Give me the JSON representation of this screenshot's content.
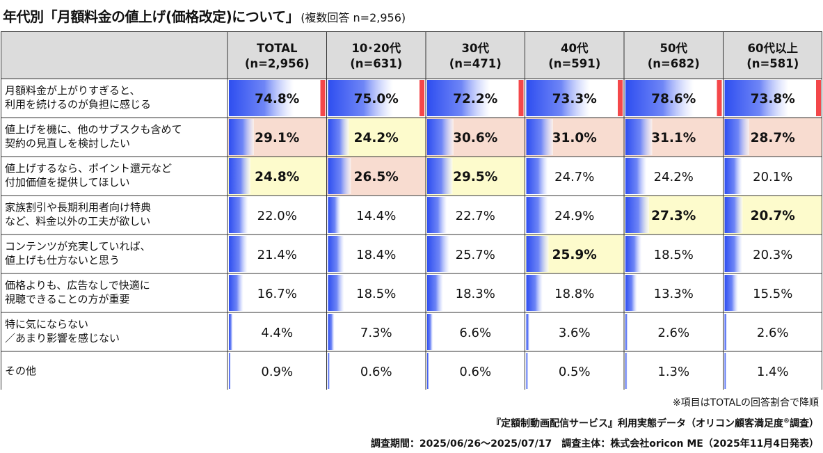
{
  "title": {
    "main": "年代別「月額料金の値上げ(価格改定)について」",
    "sub": "(複数回答 n=2,956)"
  },
  "chart_data": {
    "type": "table",
    "title": "年代別「月額料金の値上げ(価格改定)について」(複数回答 n=2,956)",
    "columns": [
      {
        "label": "TOTAL",
        "n": "(n=2,956)"
      },
      {
        "label": "10･20代",
        "n": "(n=631)"
      },
      {
        "label": "30代",
        "n": "(n=471)"
      },
      {
        "label": "40代",
        "n": "(n=591)"
      },
      {
        "label": "50代",
        "n": "(n=682)"
      },
      {
        "label": "60代以上",
        "n": "(n=581)"
      }
    ],
    "rows": [
      {
        "label": [
          "月額料金が上がりすぎると、",
          "利用を続けるのが負担に感じる"
        ],
        "values": [
          74.8,
          75.0,
          72.2,
          73.3,
          78.6,
          73.8
        ],
        "display": [
          "74.8%",
          "75.0%",
          "72.2%",
          "73.3%",
          "78.6%",
          "73.8%"
        ],
        "rank": [
          1,
          1,
          1,
          1,
          1,
          1
        ]
      },
      {
        "label": [
          "値上げを機に、他のサブスクも含めて",
          "契約の見直しを検討したい"
        ],
        "values": [
          29.1,
          24.2,
          30.6,
          31.0,
          31.1,
          28.7
        ],
        "display": [
          "29.1%",
          "24.2%",
          "30.6%",
          "31.0%",
          "31.1%",
          "28.7%"
        ],
        "rank": [
          2,
          3,
          2,
          2,
          2,
          2
        ]
      },
      {
        "label": [
          "値上げするなら、ポイント還元など",
          "付加価値を提供してほしい"
        ],
        "values": [
          24.8,
          26.5,
          29.5,
          24.7,
          24.2,
          20.1
        ],
        "display": [
          "24.8%",
          "26.5%",
          "29.5%",
          "24.7%",
          "24.2%",
          "20.1%"
        ],
        "rank": [
          3,
          2,
          3,
          0,
          0,
          0
        ]
      },
      {
        "label": [
          "家族割引や長期利用者向け特典",
          "など、料金以外の工夫が欲しい"
        ],
        "values": [
          22.0,
          14.4,
          22.7,
          24.9,
          27.3,
          20.7
        ],
        "display": [
          "22.0%",
          "14.4%",
          "22.7%",
          "24.9%",
          "27.3%",
          "20.7%"
        ],
        "rank": [
          0,
          0,
          0,
          0,
          3,
          3
        ]
      },
      {
        "label": [
          "コンテンツが充実していれば、",
          "値上げも仕方ないと思う"
        ],
        "values": [
          21.4,
          18.4,
          25.7,
          25.9,
          18.5,
          20.3
        ],
        "display": [
          "21.4%",
          "18.4%",
          "25.7%",
          "25.9%",
          "18.5%",
          "20.3%"
        ],
        "rank": [
          0,
          0,
          0,
          3,
          0,
          0
        ]
      },
      {
        "label": [
          "価格よりも、広告なしで快適に",
          "視聴できることの方が重要"
        ],
        "values": [
          16.7,
          18.5,
          18.3,
          18.8,
          13.3,
          15.5
        ],
        "display": [
          "16.7%",
          "18.5%",
          "18.3%",
          "18.8%",
          "13.3%",
          "15.5%"
        ],
        "rank": [
          0,
          0,
          0,
          0,
          0,
          0
        ]
      },
      {
        "label": [
          "特に気にならない",
          "／あまり影響を感じない"
        ],
        "values": [
          4.4,
          7.3,
          6.6,
          3.6,
          2.6,
          2.6
        ],
        "display": [
          "4.4%",
          "7.3%",
          "6.6%",
          "3.6%",
          "2.6%",
          "2.6%"
        ],
        "rank": [
          0,
          0,
          0,
          0,
          0,
          0
        ]
      },
      {
        "label": [
          "その他"
        ],
        "values": [
          0.9,
          0.6,
          0.6,
          0.5,
          1.3,
          1.4
        ],
        "display": [
          "0.9%",
          "0.6%",
          "0.6%",
          "0.5%",
          "1.3%",
          "1.4%"
        ],
        "rank": [
          0,
          0,
          0,
          0,
          0,
          0
        ]
      }
    ],
    "highlight_legend": {
      "1": "#f4474a",
      "2": "#f8dcd0",
      "3": "#fdfbcc"
    },
    "bar_color": "#3355ee"
  },
  "colors": {
    "header_bg": "#dcdcdc",
    "rank1_tick": "#f4474a",
    "rank2_bg": "#f8dcd0",
    "rank3_bg": "#fdfbcc",
    "bar": "#3355ee"
  },
  "footnotes": {
    "note": "※項目はTOTALの回答割合で降順",
    "source_pre": "『定額制動画配信サービス』利用実態データ（オリコン顧客満足度",
    "source_mark": "®",
    "source_post": "調査）",
    "period": "調査期間：2025/06/26～2025/07/17　調査主体：株式会社oricon ME（2025年11月4日発表）"
  }
}
